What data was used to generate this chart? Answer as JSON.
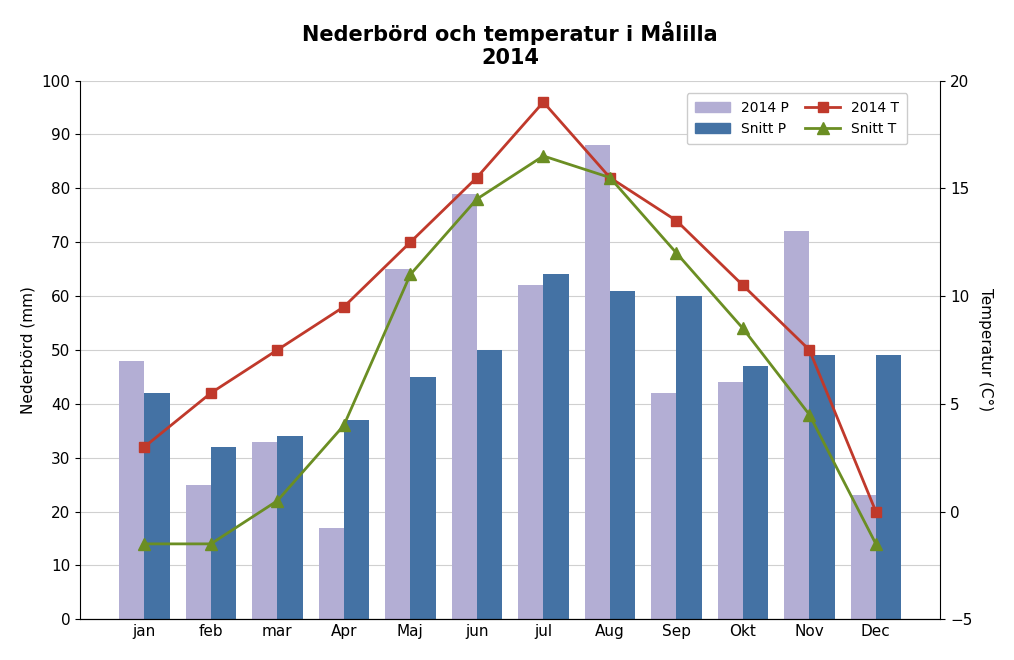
{
  "months": [
    "jan",
    "feb",
    "mar",
    "Apr",
    "Maj",
    "jun",
    "jul",
    "Aug",
    "Sep",
    "Okt",
    "Nov",
    "Dec"
  ],
  "precip_2014": [
    48,
    25,
    33,
    17,
    65,
    79,
    62,
    88,
    42,
    44,
    72,
    23
  ],
  "precip_snitt": [
    42,
    32,
    34,
    37,
    45,
    50,
    64,
    61,
    60,
    47,
    49,
    49
  ],
  "temp_2014_C": [
    3.0,
    5.5,
    7.5,
    9.5,
    12.5,
    15.5,
    19.0,
    15.5,
    13.5,
    10.5,
    7.5,
    0.0
  ],
  "temp_snitt_C": [
    -1.5,
    -1.5,
    0.5,
    4.0,
    11.0,
    14.5,
    16.5,
    15.5,
    12.0,
    8.5,
    4.5,
    -1.5
  ],
  "bar_color_2014": "#b3aed4",
  "bar_color_snitt": "#4472a4",
  "line_color_2014T": "#c0392b",
  "line_color_snittT": "#6b8e23",
  "title_line1": "Nederbörd och temperatur i Målilla",
  "title_line2": "2014",
  "ylabel_left": "Nederbörd (mm)",
  "ylabel_right": "Temperatur (C°)",
  "ylim_left": [
    0,
    100
  ],
  "ylim_right": [
    -5,
    20
  ],
  "yticks_left": [
    0,
    10,
    20,
    30,
    40,
    50,
    60,
    70,
    80,
    90,
    100
  ],
  "yticks_right": [
    -5,
    0,
    5,
    10,
    15,
    20
  ],
  "legend_labels": [
    "2014 P",
    "Snitt P",
    "2014 T",
    "Snitt T"
  ]
}
